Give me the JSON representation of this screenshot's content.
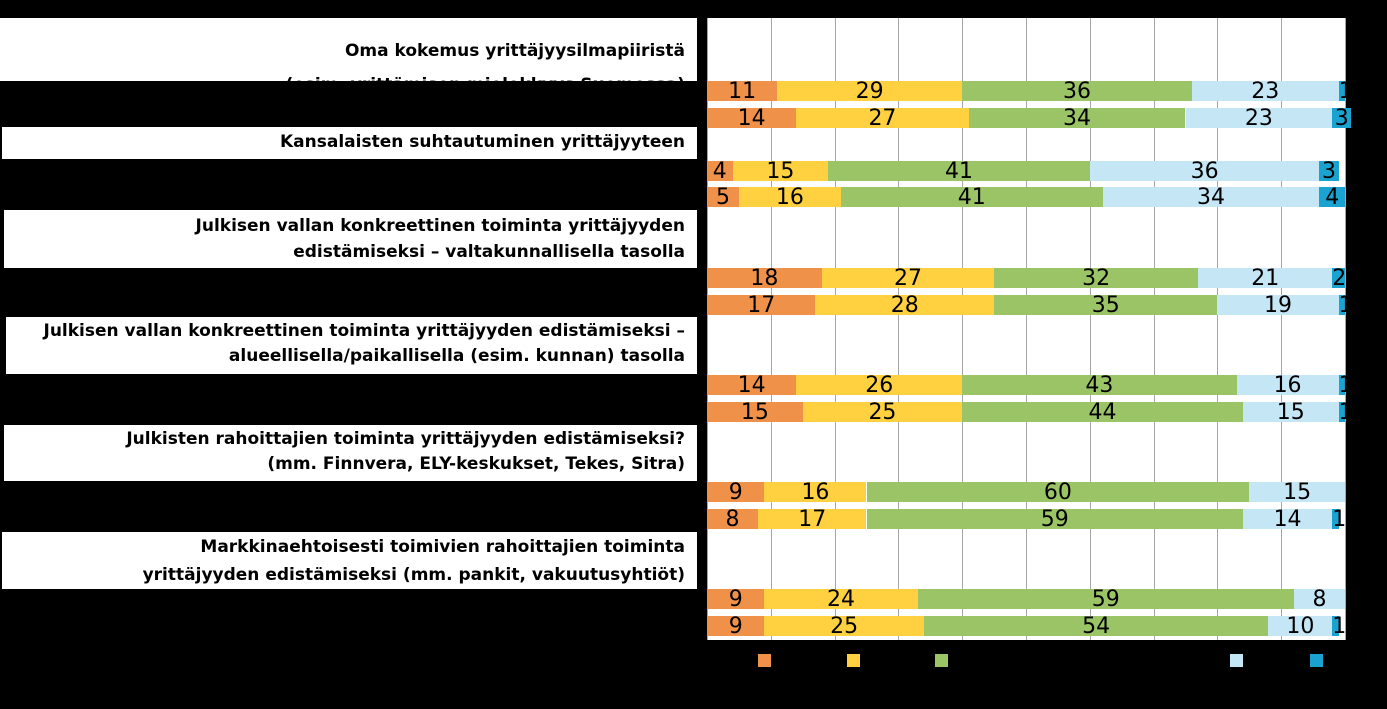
{
  "chart_data": {
    "type": "bar",
    "orientation": "horizontal",
    "stacked": true,
    "xlim": [
      0,
      100
    ],
    "grid": true,
    "legend": "bottom",
    "series_colors": [
      "#f0914a",
      "#ffd140",
      "#9bc467",
      "#c5e6f5",
      "#1aa3d1"
    ],
    "groups": [
      {
        "question": [
          "Oma kokemus yrittäjyysilmapiiristä",
          "(esim. yrittämisen mielekkyys Suomessa)"
        ],
        "rows": [
          {
            "values": [
              11,
              29,
              36,
              23,
              1
            ],
            "labels": [
              "11",
              "29",
              "36",
              "23",
              "1"
            ]
          },
          {
            "values": [
              14,
              27,
              34,
              23,
              3
            ],
            "labels": [
              "14",
              "27",
              "34",
              "23",
              "3"
            ]
          }
        ]
      },
      {
        "question": [
          "Kansalaisten suhtautuminen yrittäjyyteen"
        ],
        "rows": [
          {
            "values": [
              4,
              15,
              41,
              36,
              3
            ],
            "labels": [
              "4",
              "15",
              "41",
              "36",
              "3"
            ]
          },
          {
            "values": [
              5,
              16,
              41,
              34,
              4
            ],
            "labels": [
              "5",
              "16",
              "41",
              "34",
              "4"
            ]
          }
        ]
      },
      {
        "question": [
          "Julkisen vallan konkreettinen toiminta yrittäjyyden",
          "edistämiseksi – valtakunnallisella tasolla"
        ],
        "rows": [
          {
            "values": [
              18,
              27,
              32,
              21,
              2
            ],
            "labels": [
              "18",
              "27",
              "32",
              "21",
              "2"
            ]
          },
          {
            "values": [
              17,
              28,
              35,
              19,
              1
            ],
            "labels": [
              "17",
              "28",
              "35",
              "19",
              "1"
            ]
          }
        ]
      },
      {
        "question": [
          "Julkisen vallan konkreettinen toiminta yrittäjyyden edistämiseksi –",
          "alueellisella/paikallisella (esim. kunnan) tasolla"
        ],
        "rows": [
          {
            "values": [
              14,
              26,
              43,
              16,
              1
            ],
            "labels": [
              "14",
              "26",
              "43",
              "16",
              "1"
            ]
          },
          {
            "values": [
              15,
              25,
              44,
              15,
              1
            ],
            "labels": [
              "15",
              "25",
              "44",
              "15",
              "1"
            ]
          }
        ]
      },
      {
        "question": [
          "Julkisten rahoittajien toiminta yrittäjyyden edistämiseksi?",
          "(mm. Finnvera, ELY-keskukset, Tekes, Sitra)"
        ],
        "rows": [
          {
            "values": [
              9,
              16,
              60,
              15,
              0
            ],
            "labels": [
              "9",
              "16",
              "60",
              "15",
              "0"
            ]
          },
          {
            "values": [
              8,
              17,
              59,
              14,
              1
            ],
            "labels": [
              "8",
              "17",
              "59",
              "14",
              "1"
            ]
          }
        ]
      },
      {
        "question": [
          "Markkinaehtoisesti toimivien rahoittajien toiminta",
          "yrittäjyyden edistämiseksi (mm. pankit, vakuutusyhtiöt)"
        ],
        "rows": [
          {
            "values": [
              9,
              24,
              59,
              8,
              0
            ],
            "labels": [
              "9",
              "24",
              "59",
              "8",
              "0"
            ]
          },
          {
            "values": [
              9,
              25,
              54,
              10,
              1
            ],
            "labels": [
              "9",
              "25",
              "54",
              "10",
              "1"
            ]
          }
        ]
      }
    ]
  }
}
